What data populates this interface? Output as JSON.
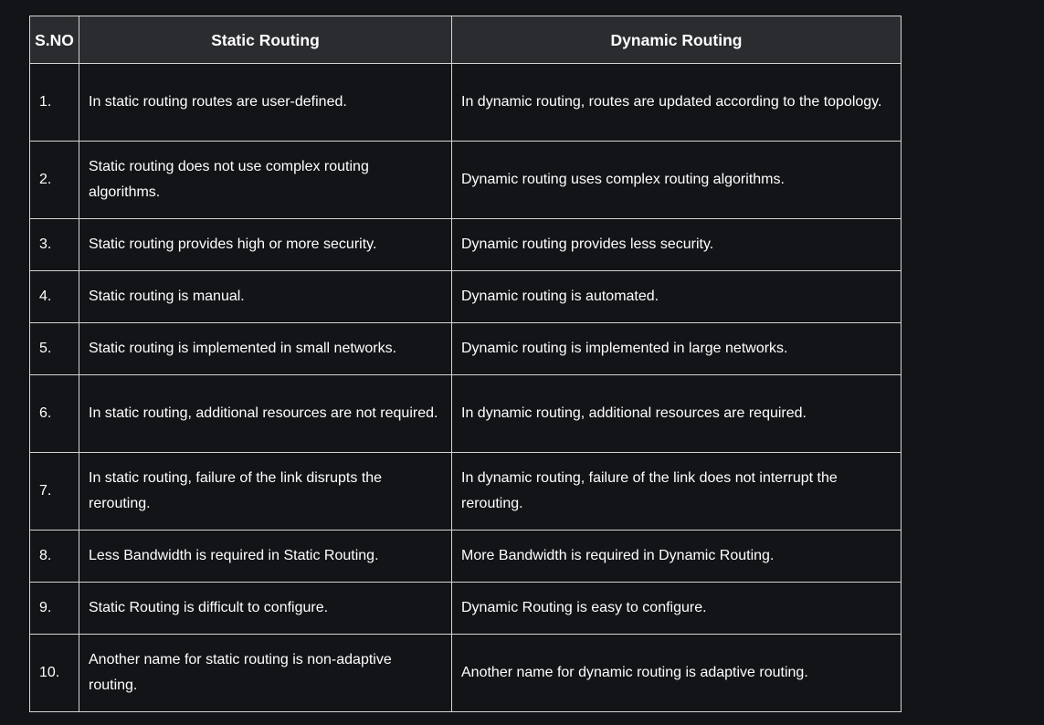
{
  "table": {
    "headers": {
      "sno": "S.NO",
      "static": "Static Routing",
      "dynamic": "Dynamic Routing"
    },
    "rows": [
      {
        "sno": "1.",
        "static": "In static routing routes are user-defined.",
        "dynamic": "In dynamic routing, routes are updated according to the topology."
      },
      {
        "sno": "2.",
        "static": "Static routing does not use complex routing algorithms.",
        "dynamic": "Dynamic routing uses complex routing algorithms."
      },
      {
        "sno": "3.",
        "static": "Static routing provides high or more security.",
        "dynamic": "Dynamic routing provides less security."
      },
      {
        "sno": "4.",
        "static": "Static routing is manual.",
        "dynamic": "Dynamic routing is automated."
      },
      {
        "sno": "5.",
        "static": "Static routing is implemented in small networks.",
        "dynamic": "Dynamic routing is implemented in large networks."
      },
      {
        "sno": "6.",
        "static": "In static routing, additional resources are not required.",
        "dynamic": "In dynamic routing, additional resources are required."
      },
      {
        "sno": "7.",
        "static": "In static routing, failure of the link disrupts the rerouting.",
        "dynamic": "In dynamic routing, failure of the link does not interrupt the rerouting."
      },
      {
        "sno": "8.",
        "static": "Less Bandwidth is required in Static Routing.",
        "dynamic": "More Bandwidth is required in Dynamic Routing."
      },
      {
        "sno": "9.",
        "static": "Static Routing is difficult to configure.",
        "dynamic": "Dynamic Routing is easy to configure."
      },
      {
        "sno": "10.",
        "static": "Another name for static routing is non-adaptive routing.",
        "dynamic": "Another name for dynamic routing is adaptive routing."
      }
    ]
  }
}
